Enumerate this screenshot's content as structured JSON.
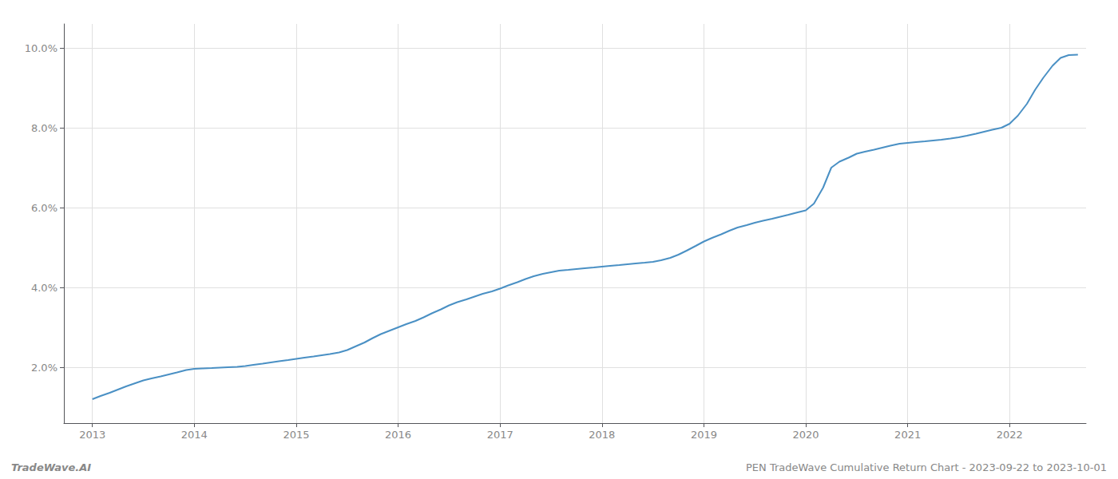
{
  "chart_data": {
    "type": "line",
    "annotations": [
      "TradeWave.AI",
      "PEN TradeWave Cumulative Return Chart - 2023-09-22 to 2023-10-01"
    ],
    "color": "#4a90c4",
    "grid": true,
    "x": [
      2013.0,
      2013.08,
      2013.17,
      2013.25,
      2013.33,
      2013.42,
      2013.5,
      2013.58,
      2013.67,
      2013.75,
      2013.83,
      2013.92,
      2014.0,
      2014.08,
      2014.17,
      2014.25,
      2014.33,
      2014.42,
      2014.5,
      2014.58,
      2014.67,
      2014.75,
      2014.83,
      2014.92,
      2015.0,
      2015.08,
      2015.17,
      2015.25,
      2015.33,
      2015.42,
      2015.5,
      2015.58,
      2015.67,
      2015.75,
      2015.83,
      2015.92,
      2016.0,
      2016.08,
      2016.17,
      2016.25,
      2016.33,
      2016.42,
      2016.5,
      2016.58,
      2016.67,
      2016.75,
      2016.83,
      2016.92,
      2017.0,
      2017.08,
      2017.17,
      2017.25,
      2017.33,
      2017.42,
      2017.5,
      2017.58,
      2017.67,
      2017.75,
      2017.83,
      2017.92,
      2018.0,
      2018.08,
      2018.17,
      2018.25,
      2018.33,
      2018.42,
      2018.5,
      2018.58,
      2018.67,
      2018.75,
      2018.83,
      2018.92,
      2019.0,
      2019.08,
      2019.17,
      2019.25,
      2019.33,
      2019.42,
      2019.5,
      2019.58,
      2019.67,
      2019.75,
      2019.83,
      2019.92,
      2020.0,
      2020.08,
      2020.17,
      2020.25,
      2020.33,
      2020.42,
      2020.5,
      2020.58,
      2020.67,
      2020.75,
      2020.83,
      2020.92,
      2021.0,
      2021.08,
      2021.17,
      2021.25,
      2021.33,
      2021.42,
      2021.5,
      2021.58,
      2021.67,
      2021.75,
      2021.83,
      2021.92,
      2022.0,
      2022.08,
      2022.17,
      2022.25,
      2022.33,
      2022.42,
      2022.5,
      2022.58,
      2022.67
    ],
    "values": [
      1.2,
      1.28,
      1.36,
      1.44,
      1.52,
      1.6,
      1.67,
      1.72,
      1.77,
      1.82,
      1.87,
      1.93,
      1.96,
      1.97,
      1.98,
      1.99,
      2.0,
      2.01,
      2.03,
      2.06,
      2.09,
      2.12,
      2.15,
      2.18,
      2.21,
      2.24,
      2.27,
      2.3,
      2.33,
      2.37,
      2.43,
      2.52,
      2.62,
      2.73,
      2.83,
      2.92,
      3.0,
      3.08,
      3.16,
      3.25,
      3.35,
      3.45,
      3.55,
      3.63,
      3.7,
      3.77,
      3.84,
      3.9,
      3.97,
      4.05,
      4.13,
      4.21,
      4.28,
      4.34,
      4.38,
      4.42,
      4.44,
      4.46,
      4.48,
      4.5,
      4.52,
      4.54,
      4.56,
      4.58,
      4.6,
      4.62,
      4.64,
      4.68,
      4.74,
      4.82,
      4.92,
      5.04,
      5.15,
      5.24,
      5.33,
      5.42,
      5.5,
      5.56,
      5.62,
      5.67,
      5.72,
      5.77,
      5.82,
      5.88,
      5.93,
      6.1,
      6.5,
      7.0,
      7.15,
      7.25,
      7.35,
      7.4,
      7.45,
      7.5,
      7.55,
      7.6,
      7.62,
      7.64,
      7.66,
      7.68,
      7.7,
      7.73,
      7.76,
      7.8,
      7.85,
      7.9,
      7.95,
      8.0,
      8.1,
      8.3,
      8.6,
      8.95,
      9.25,
      9.55,
      9.75,
      9.82,
      9.83
    ],
    "xlim": [
      2012.72,
      2022.75
    ],
    "xticks": [
      2013,
      2014,
      2015,
      2016,
      2017,
      2018,
      2019,
      2020,
      2021,
      2022
    ],
    "ylim": [
      0.6,
      10.6
    ],
    "yticks": [
      {
        "value": 2.0,
        "label": "2.0%"
      },
      {
        "value": 4.0,
        "label": "4.0%"
      },
      {
        "value": 6.0,
        "label": "6.0%"
      },
      {
        "value": 8.0,
        "label": "8.0%"
      },
      {
        "value": 10.0,
        "label": "10.0%"
      }
    ]
  }
}
